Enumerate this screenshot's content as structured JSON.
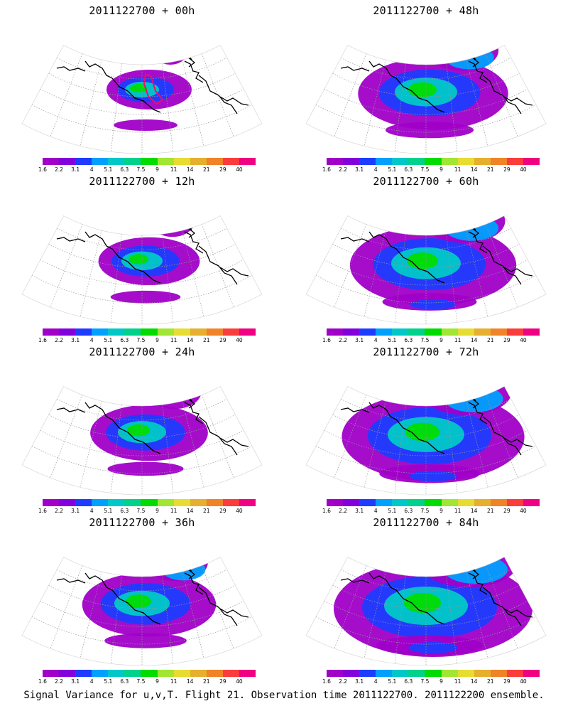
{
  "panels": [
    {
      "title": "2011122700 + 00h",
      "hour": 0
    },
    {
      "title": "2011122700 + 48h",
      "hour": 48
    },
    {
      "title": "2011122700 + 12h",
      "hour": 12
    },
    {
      "title": "2011122700 + 60h",
      "hour": 60
    },
    {
      "title": "2011122700 + 24h",
      "hour": 24
    },
    {
      "title": "2011122700 + 72h",
      "hour": 72
    },
    {
      "title": "2011122700 + 36h",
      "hour": 36
    },
    {
      "title": "2011122700 + 84h",
      "hour": 84
    }
  ],
  "colorbar": {
    "colors": [
      "#a000c8",
      "#8200dc",
      "#1e3cff",
      "#00a0ff",
      "#00c8c8",
      "#00d28c",
      "#00dc00",
      "#a0e632",
      "#e6dc32",
      "#e6af2d",
      "#f08228",
      "#fa3c3c",
      "#f00082"
    ],
    "labels": [
      "1.6",
      "2.2",
      "3.1",
      "4",
      "5.1",
      "6.3",
      "7.5",
      "9",
      "11",
      "14",
      "21",
      "29",
      "40"
    ]
  },
  "footer": "Signal Variance for u,v,T. Flight 21. Observation time 2011122700. 2011122200 ensemble.",
  "colors": {
    "coastline": "#000000",
    "graticule": "#9a9a9a",
    "flight_track": "#e8106a"
  }
}
